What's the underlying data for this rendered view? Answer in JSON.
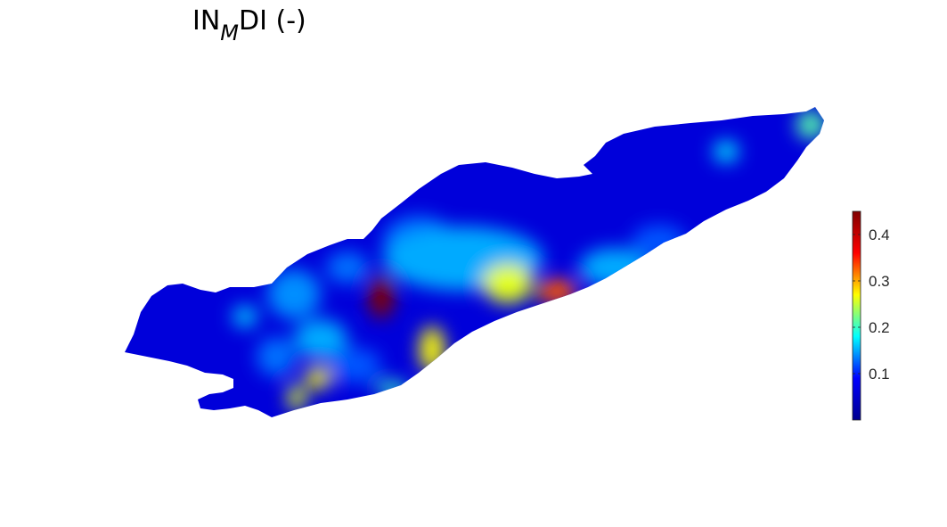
{
  "chart_data": {
    "type": "heatmap",
    "title": {
      "base": "IN",
      "subscript": "M",
      "rest": "DI (-)"
    },
    "colormap": "jet",
    "colormap_stops": [
      "#00008f",
      "#0000ff",
      "#00ffff",
      "#ffff00",
      "#ff0000",
      "#800000"
    ],
    "color_range": [
      0.0,
      0.45
    ],
    "colorbar": {
      "placement": "right",
      "ticks": [
        {
          "value": 0.1,
          "label": "0.1"
        },
        {
          "value": 0.2,
          "label": "0.2"
        },
        {
          "value": 0.3,
          "label": "0.3"
        },
        {
          "value": 0.4,
          "label": "0.4"
        }
      ]
    },
    "field": {
      "background_value": 0.06,
      "hotspots": [
        {
          "name": "central-max",
          "value": 0.45
        },
        {
          "name": "east-central-orange",
          "value": 0.33
        },
        {
          "name": "central-yellow",
          "value": 0.26
        },
        {
          "name": "south-central-yellow",
          "value": 0.27
        },
        {
          "name": "south-west-yellow-1",
          "value": 0.27
        },
        {
          "name": "south-west-yellow-2",
          "value": 0.26
        },
        {
          "name": "east-tip-green",
          "value": 0.21
        },
        {
          "name": "south-shore-green",
          "value": 0.2
        },
        {
          "name": "east-basin-cyan",
          "value": 0.17
        },
        {
          "name": "west-basin-cyan",
          "value": 0.16
        },
        {
          "name": "central-cyan-band",
          "value": 0.15
        }
      ]
    }
  }
}
